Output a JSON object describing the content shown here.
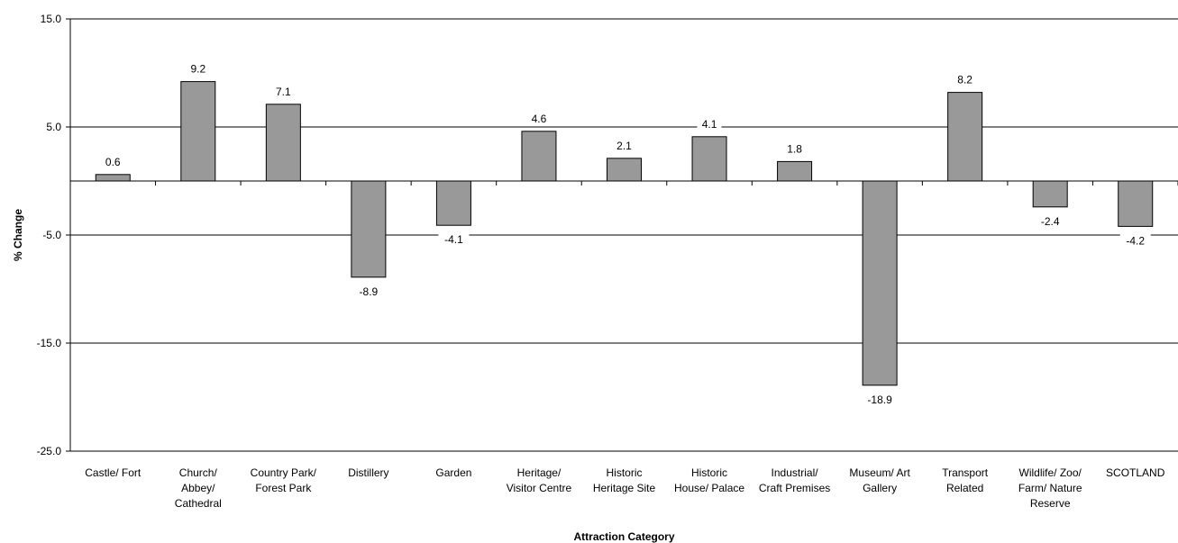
{
  "chart_data": {
    "type": "bar",
    "title": "",
    "xlabel": "Attraction Category",
    "ylabel": "% Change",
    "ylim": [
      -25,
      15
    ],
    "yticks": [
      15,
      5,
      -5,
      -15,
      -25
    ],
    "ytick_labels": [
      "15.0",
      "5.0",
      "-5.0",
      "-15.0",
      "-25.0"
    ],
    "grid": true,
    "legend": "none",
    "bar_color": "#999999",
    "categories": [
      [
        "Castle/ Fort"
      ],
      [
        "Church/",
        "Abbey/",
        "Cathedral"
      ],
      [
        "Country Park/",
        "Forest Park"
      ],
      [
        "Distillery"
      ],
      [
        "Garden"
      ],
      [
        "Heritage/",
        "Visitor Centre"
      ],
      [
        "Historic",
        "Heritage Site"
      ],
      [
        "Historic",
        "House/ Palace"
      ],
      [
        "Industrial/",
        "Craft Premises"
      ],
      [
        "Museum/ Art",
        "Gallery"
      ],
      [
        "Transport",
        "Related"
      ],
      [
        "Wildlife/ Zoo/",
        "Farm/ Nature",
        "Reserve"
      ],
      [
        "SCOTLAND"
      ]
    ],
    "values": [
      0.6,
      9.2,
      7.1,
      -8.9,
      -4.1,
      4.6,
      2.1,
      4.1,
      1.8,
      -18.9,
      8.2,
      -2.4,
      -4.2
    ],
    "value_labels": [
      "0.6",
      "9.2",
      "7.1",
      "-8.9",
      "-4.1",
      "4.6",
      "2.1",
      "4.1",
      "1.8",
      "-18.9",
      "8.2",
      "-2.4",
      "-4.2"
    ]
  }
}
